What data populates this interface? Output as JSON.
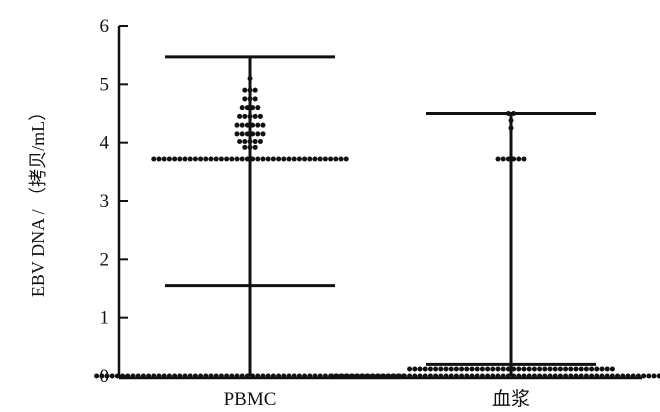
{
  "chart_data": {
    "type": "scatter",
    "subtype": "dot-plot-with-range-bars",
    "title": "",
    "xlabel": "",
    "ylabel": "EBV DNA / （拷贝/mL）",
    "ylim": [
      0,
      6
    ],
    "yticks": [
      "0",
      "1",
      "2",
      "3",
      "4",
      "5",
      "6"
    ],
    "categories": [
      "PBMC",
      "血浆"
    ],
    "grid": false,
    "series": [
      {
        "category": "PBMC",
        "max": 5.47,
        "median": 1.55,
        "min": 0,
        "points": [
          {
            "y": 5.1,
            "count": 1
          },
          {
            "y": 4.9,
            "count": 3
          },
          {
            "y": 4.75,
            "count": 3
          },
          {
            "y": 4.6,
            "count": 4
          },
          {
            "y": 4.45,
            "count": 5
          },
          {
            "y": 4.3,
            "count": 6
          },
          {
            "y": 4.15,
            "count": 6
          },
          {
            "y": 4.02,
            "count": 5
          },
          {
            "y": 3.92,
            "count": 3
          },
          {
            "y": 3.72,
            "count": 38
          },
          {
            "y": 0,
            "count": 60
          }
        ]
      },
      {
        "category": "血浆",
        "max": 4.5,
        "median": 0.2,
        "min": 0,
        "points": [
          {
            "y": 4.5,
            "count": 2
          },
          {
            "y": 4.38,
            "count": 1
          },
          {
            "y": 4.25,
            "count": 1
          },
          {
            "y": 3.72,
            "count": 6
          },
          {
            "y": 0.12,
            "count": 40
          },
          {
            "y": 0,
            "count": 70
          }
        ]
      }
    ],
    "colors": {
      "marks": "#111111",
      "axis": "#111111"
    }
  }
}
